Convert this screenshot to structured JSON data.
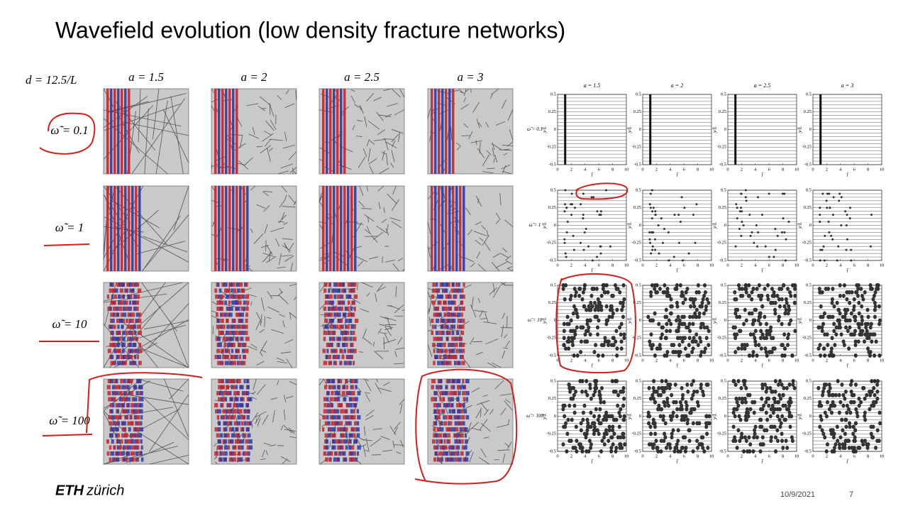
{
  "title": "Wavefield evolution (low density fracture networks)",
  "left": {
    "density_label": "d = 12.5/L",
    "columns": [
      "a = 1.5",
      "a = 2",
      "a = 2.5",
      "a = 3"
    ],
    "rows": [
      "ω̃ = 0.1",
      "ω̃ = 1",
      "ω̃ = 10",
      "ω̃ = 100"
    ]
  },
  "right": {
    "columns": [
      "a = 1.5",
      "a = 2",
      "a = 2.5",
      "a = 3"
    ],
    "rows": [
      "ω̃ = 0.1",
      "ω̃ = 1",
      "ω̃ = 10",
      "ω̃ = 100"
    ],
    "y_label": "y/L",
    "x_label": "t̃",
    "yticks": [
      0.5,
      0.25,
      0,
      -0.25,
      -0.5
    ],
    "xticks": [
      0,
      2,
      4,
      6,
      8,
      10
    ]
  },
  "footer": {
    "logo_bold": "ETH",
    "logo_rest": "zürich",
    "date": "10/9/2021",
    "page": "7"
  }
}
